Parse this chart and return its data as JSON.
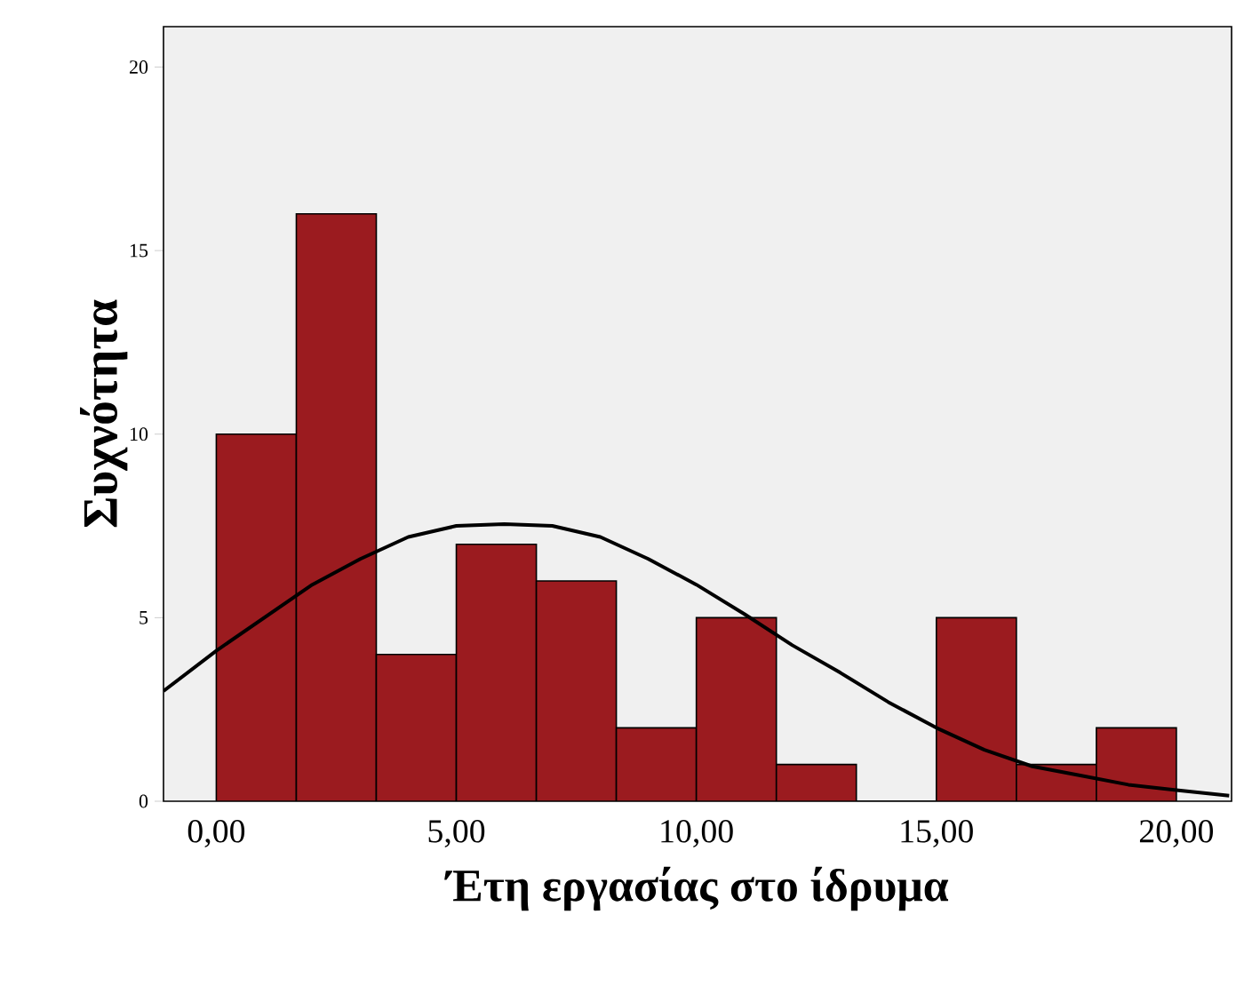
{
  "chart_data": {
    "type": "histogram",
    "xlabel": "Έτη εργασίας στο ίδρυμα",
    "ylabel": "Συχνότητα",
    "bins": [
      0,
      1.667,
      3.333,
      5,
      6.667,
      8.333,
      10,
      11.667,
      13.333,
      15,
      16.667,
      18.333,
      20
    ],
    "values": [
      10,
      16,
      4,
      7,
      6,
      2,
      5,
      1,
      0,
      5,
      1,
      2
    ],
    "color": "#9b1b1f",
    "series": [
      {
        "type": "line",
        "color": "#000000",
        "x": [
          -1.1,
          0,
          1,
          2,
          3,
          4,
          5,
          6,
          7,
          8,
          9,
          10,
          11,
          12,
          13,
          14,
          15,
          16,
          17,
          18,
          19,
          20,
          21.1
        ],
        "values": [
          3.0,
          4.1,
          5.0,
          5.9,
          6.6,
          7.2,
          7.5,
          7.55,
          7.5,
          7.2,
          6.6,
          5.9,
          5.1,
          4.25,
          3.5,
          2.7,
          2.0,
          1.4,
          0.95,
          0.7,
          0.45,
          0.3,
          0.15
        ]
      }
    ],
    "xlim": [
      -1.1,
      21.15
    ],
    "ylim": [
      0,
      21.1
    ],
    "xticks": [
      {
        "value": 0,
        "label": "0,00"
      },
      {
        "value": 5,
        "label": "5,00"
      },
      {
        "value": 10,
        "label": "10,00"
      },
      {
        "value": 15,
        "label": "15,00"
      },
      {
        "value": 20,
        "label": "20,00"
      }
    ],
    "yticks": [
      0,
      5,
      10,
      15,
      20
    ]
  }
}
